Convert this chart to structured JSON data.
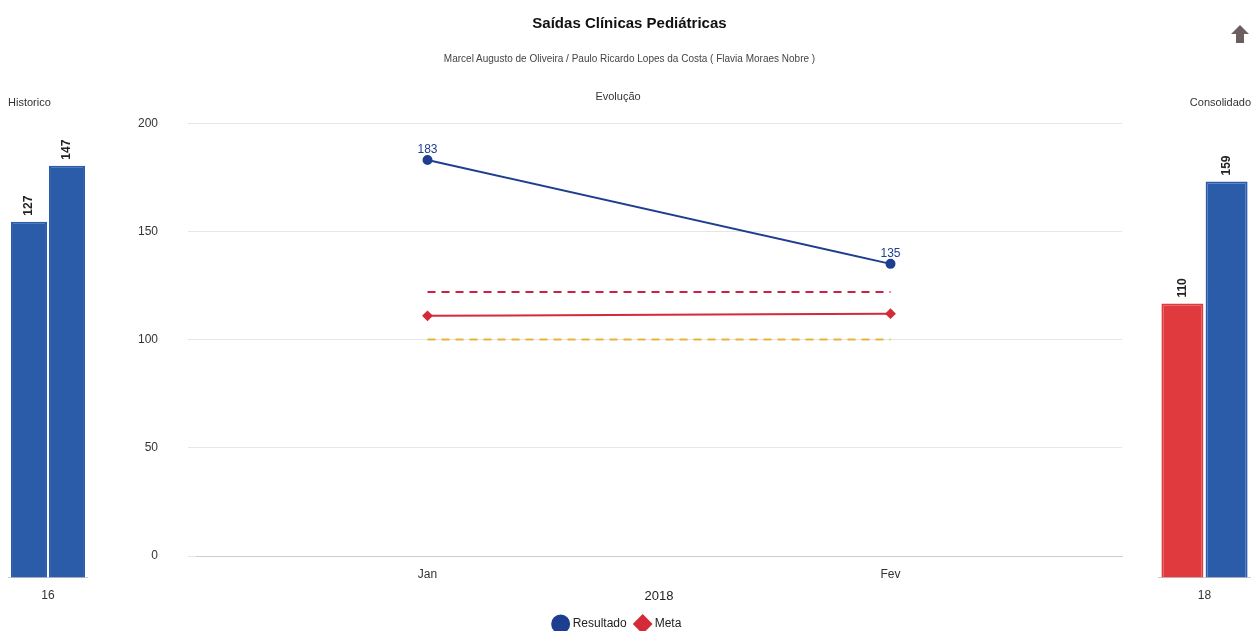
{
  "chart_data": [
    {
      "type": "other",
      "title": "Saídas Clínicas Pediátricas",
      "subtitle": "Marcel Augusto de Oliveira / Paulo Ricardo Lopes da Costa ( Flavia Moraes Nobre )"
    },
    {
      "type": "bar",
      "title": "Historico",
      "categories": [
        "16"
      ],
      "series": [
        {
          "color": "#2a5caa",
          "values": [
            127
          ]
        },
        {
          "color": "#2a5caa",
          "values": [
            147
          ]
        }
      ],
      "data_labels": true,
      "tick_labels": "x",
      "grid": false
    },
    {
      "type": "line",
      "title": "Evolução",
      "xlabel": "2018",
      "categories": [
        "Jan",
        "Fev"
      ],
      "series": [
        {
          "name": "Resultado",
          "color": "#1e3f8f",
          "values": [
            183,
            135
          ],
          "value_labels": [
            "183",
            "135"
          ],
          "marker": "circle"
        },
        {
          "name": "Meta",
          "color": "#d42a3a",
          "values": [
            111,
            112
          ],
          "marker": "diamond"
        },
        {
          "color": "#cc1f4a",
          "values": [
            122,
            122
          ],
          "marker": "none",
          "line_style": "dashed"
        },
        {
          "color": "#e8b43a",
          "values": [
            100,
            100
          ],
          "marker": "none",
          "line_style": "dashed"
        }
      ],
      "ylim": [
        0,
        200
      ],
      "yticks": [
        0,
        50,
        100,
        150,
        200
      ],
      "grid": "y",
      "legend": "bottom"
    },
    {
      "type": "bar",
      "title": "Consolidado",
      "categories": [
        "18"
      ],
      "series": [
        {
          "color": "#e0393e",
          "values": [
            110
          ]
        },
        {
          "color": "#2a5caa",
          "values": [
            159
          ]
        }
      ],
      "data_labels": true,
      "tick_labels": "x",
      "grid": false
    }
  ]
}
